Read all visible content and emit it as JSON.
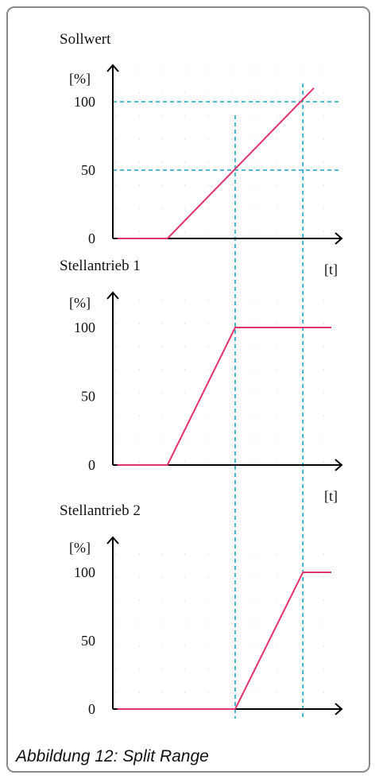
{
  "caption": "Abbildung 12: Split Range",
  "colors": {
    "series": "#e0336a",
    "guide": "#1aa3cf",
    "axis": "#000000",
    "grid": "#d9d9d9",
    "frame": "#8a8a8a"
  },
  "chart_data": [
    {
      "type": "line",
      "title": "Sollwert",
      "ylabel": "[%]",
      "xlabel": "",
      "yticks": [
        0,
        50,
        100
      ],
      "ylim": [
        0,
        110
      ],
      "xlim": [
        0,
        100
      ],
      "grid": true,
      "series": [
        {
          "x": [
            2,
            25,
            92
          ],
          "y": [
            0,
            0,
            110
          ]
        }
      ],
      "hlines": [
        50,
        100
      ]
    },
    {
      "type": "line",
      "title": "Stellantrieb 1",
      "ylabel": "[%]",
      "xlabel": "[t]",
      "yticks": [
        0,
        50,
        100
      ],
      "ylim": [
        0,
        110
      ],
      "xlim": [
        0,
        100
      ],
      "grid": true,
      "series": [
        {
          "x": [
            2,
            25,
            56,
            100
          ],
          "y": [
            0,
            0,
            100,
            100
          ]
        }
      ],
      "hlines": []
    },
    {
      "type": "line",
      "title": "Stellantrieb 2",
      "ylabel": "[%]",
      "xlabel": "[t]",
      "yticks": [
        0,
        50,
        100
      ],
      "ylim": [
        0,
        110
      ],
      "xlim": [
        0,
        100
      ],
      "grid": true,
      "series": [
        {
          "x": [
            2,
            56,
            87,
            100
          ],
          "y": [
            0,
            0,
            100,
            100
          ]
        }
      ],
      "hlines": []
    }
  ],
  "shared_vlines_x": [
    56,
    87
  ]
}
